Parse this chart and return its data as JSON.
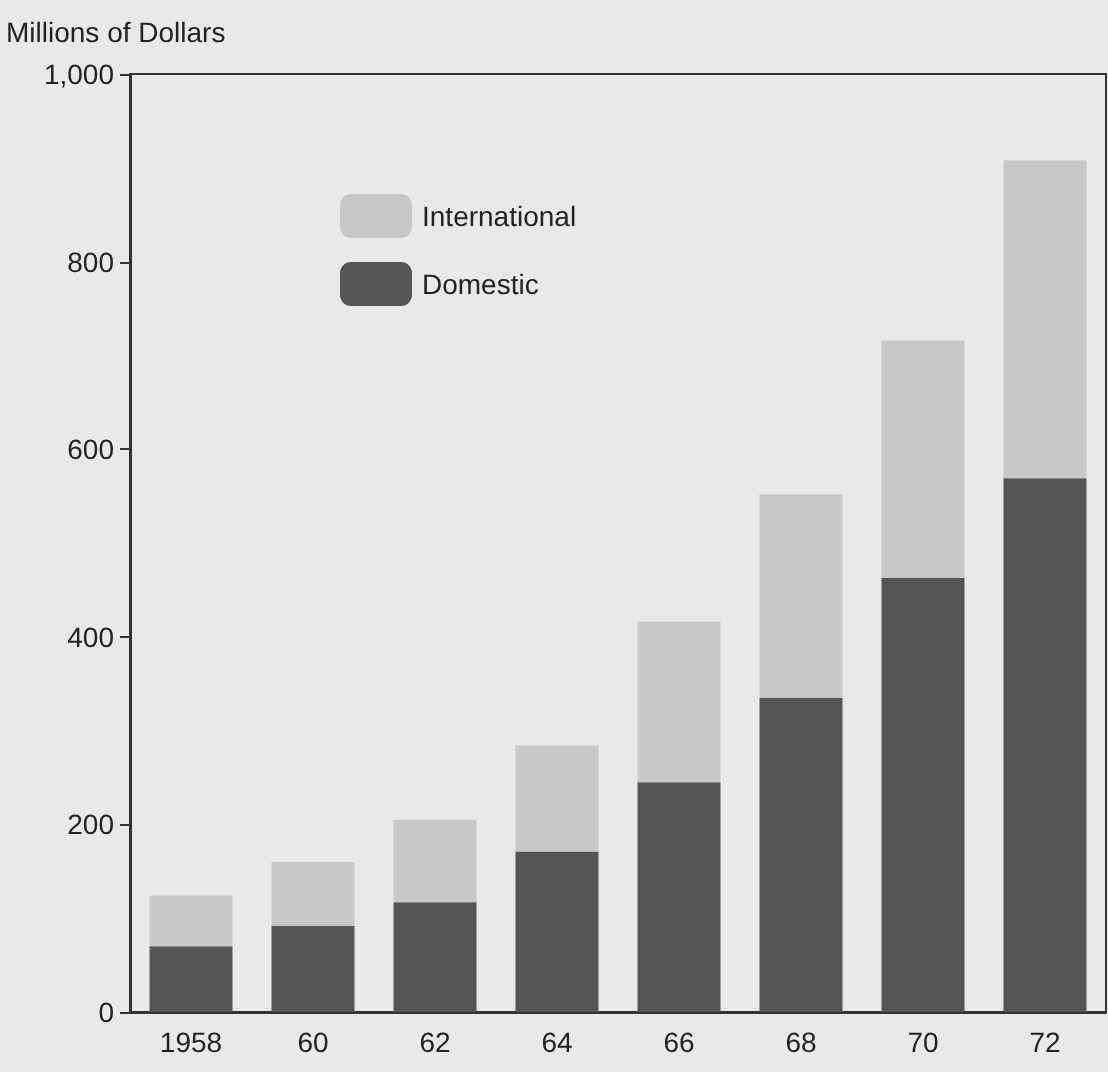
{
  "chart_data": {
    "type": "bar",
    "ylabel": "Millions of Dollars",
    "categories": [
      "1958",
      "60",
      "62",
      "64",
      "66",
      "68",
      "70",
      "72"
    ],
    "stacked": true,
    "series": [
      {
        "name": "Domestic",
        "color": "#555555",
        "values": [
          70,
          92,
          117,
          171,
          245,
          335,
          463,
          569
        ]
      },
      {
        "name": "International",
        "color": "#c8c8c8",
        "values": [
          54,
          68,
          88,
          113,
          171,
          217,
          253,
          339
        ]
      }
    ],
    "ylim": [
      0,
      1000
    ],
    "yticks": [
      0,
      200,
      400,
      600,
      800,
      {
        "value": 1000,
        "label": "1,000"
      }
    ],
    "grid": false,
    "legend": "top left"
  }
}
